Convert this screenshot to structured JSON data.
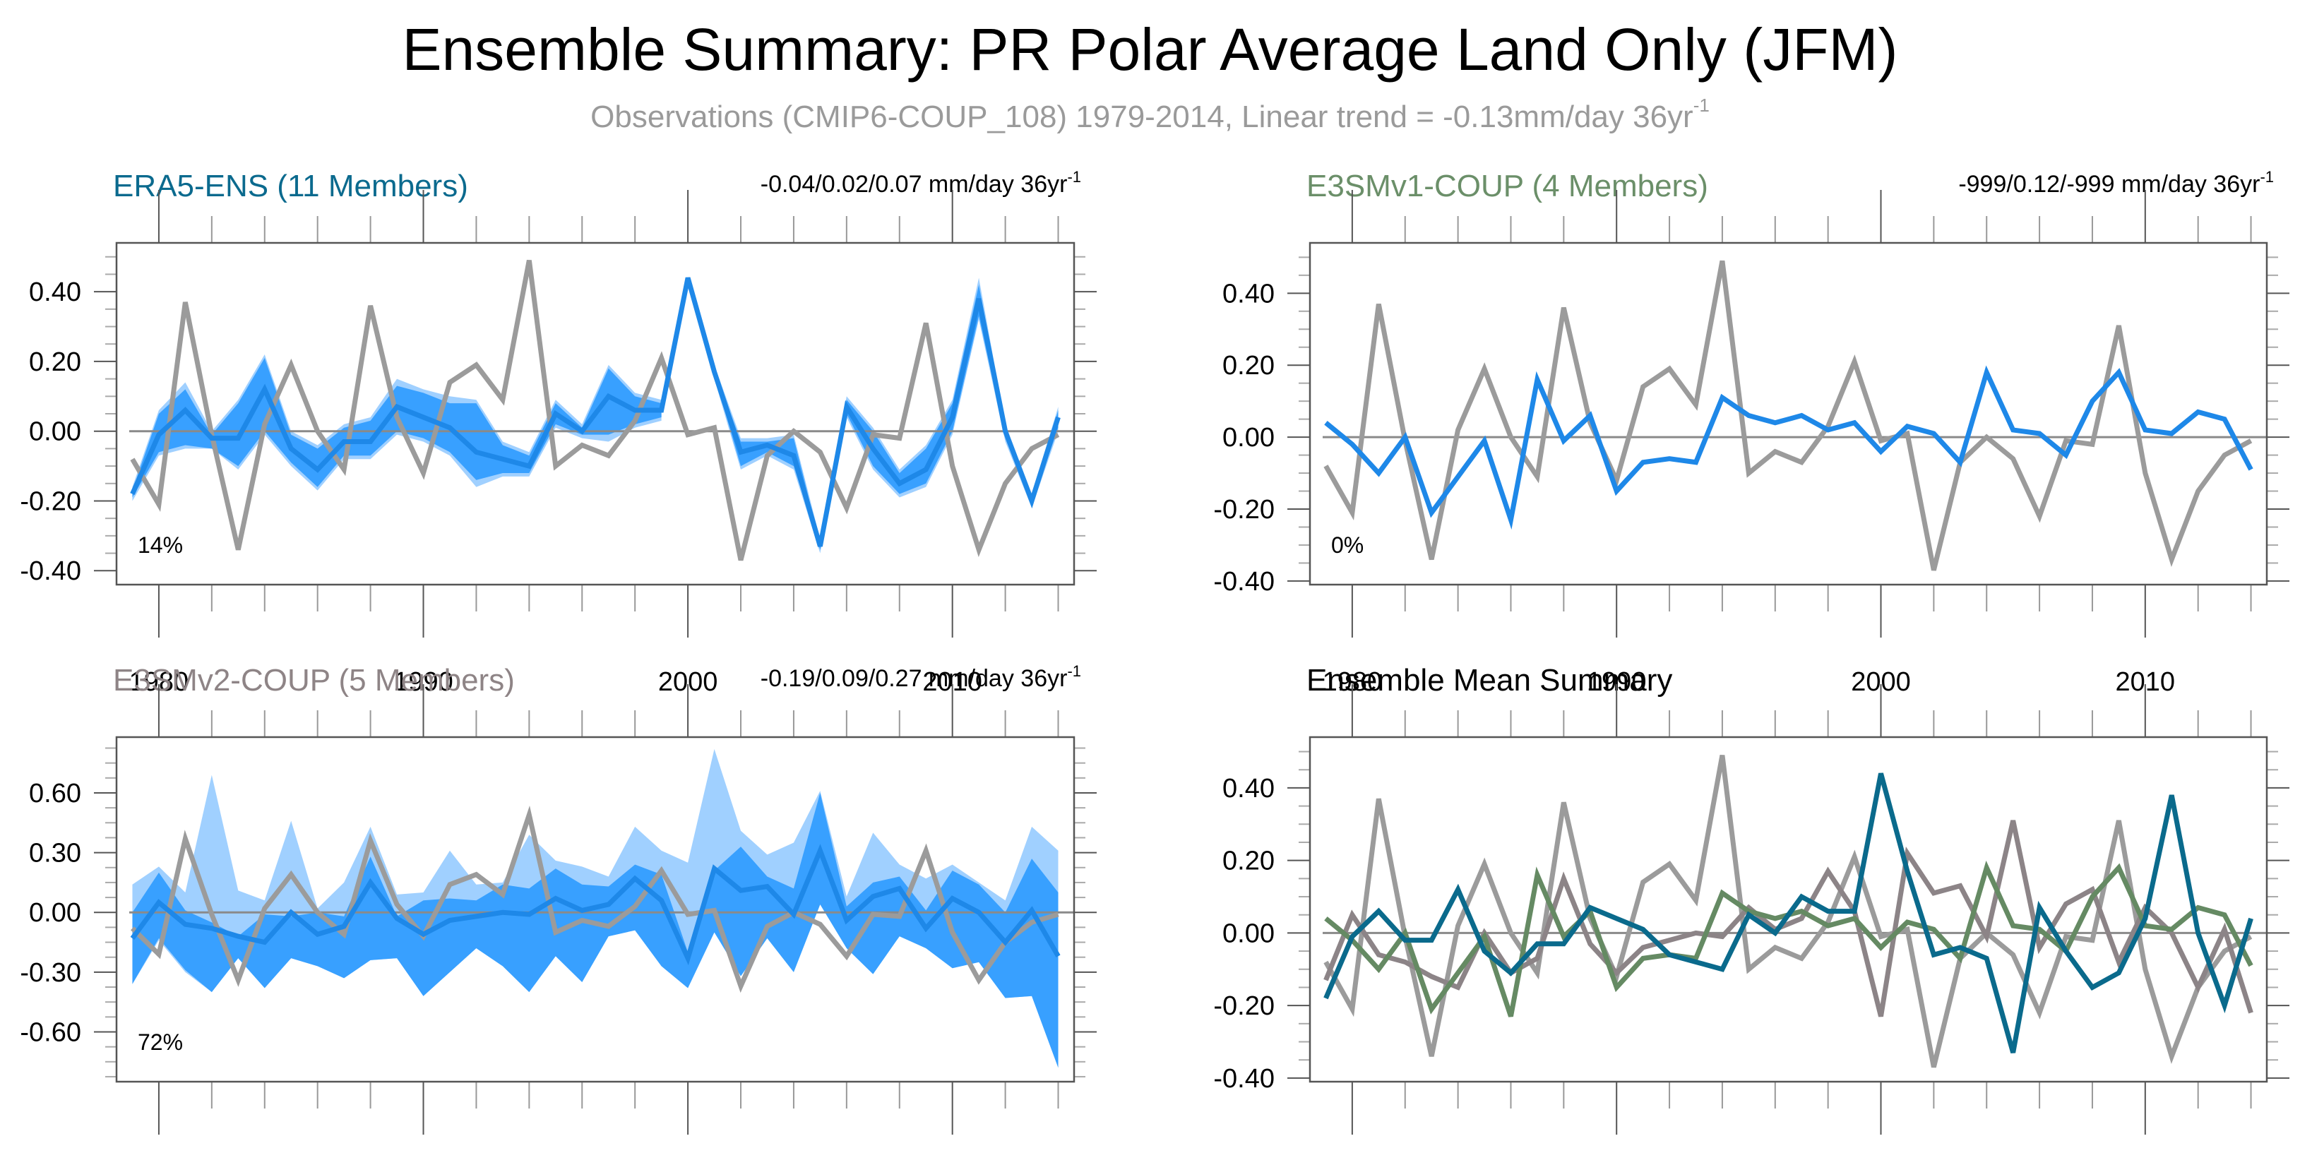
{
  "title": "Ensemble Summary: PR Polar Average Land Only (JFM)",
  "subtitle": {
    "text": "Observations (CMIP6-COUP_108) 1979-2014, Linear trend = -0.13mm/day 36yr",
    "superscript": "-1"
  },
  "colors": {
    "observations": "#9b9b9b",
    "ensemble_mean_line": "#1e88e8",
    "band_inner": "#38a0ff",
    "band_outer": "#a0d0ff",
    "era5_title": "#0b6a8e",
    "e3smv1_title": "#6b8f69",
    "e3smv2_title": "#8e8486",
    "era5_summary": "#0a6a8c",
    "e3smv1_summary": "#658a63",
    "e3smv2_summary": "#8c8487",
    "zero_line": "#8a8a8a"
  },
  "chart_data": [
    {
      "id": "era5",
      "type": "line",
      "title": "ERA5-ENS (11 Members)",
      "trend_text": "-0.04/0.02/0.07 mm/day 36yr",
      "trend_sup": "-1",
      "percent_label": "14%",
      "xlabel": "",
      "ylabel": "",
      "x": [
        1979,
        1980,
        1981,
        1982,
        1983,
        1984,
        1985,
        1986,
        1987,
        1988,
        1989,
        1990,
        1991,
        1992,
        1993,
        1994,
        1995,
        1996,
        1997,
        1998,
        1999,
        2000,
        2001,
        2002,
        2003,
        2004,
        2005,
        2006,
        2007,
        2008,
        2009,
        2010,
        2011,
        2012,
        2013,
        2014
      ],
      "xlim": [
        1978.4,
        2014.6
      ],
      "ylim": [
        -0.44,
        0.54
      ],
      "yticks": [
        -0.4,
        -0.2,
        0.0,
        0.2,
        0.4
      ],
      "ytick_labels": [
        "-0.40",
        "-0.20",
        "0.00",
        "0.20",
        "0.40"
      ],
      "xticks": [
        1980,
        1990,
        2000,
        2010
      ],
      "xtick_labels": [
        "1980",
        "1990",
        "2000",
        "2010"
      ],
      "show_xtick_labels": true,
      "observations": [
        -0.08,
        -0.21,
        0.37,
        -0.01,
        -0.34,
        0.02,
        0.19,
        0.0,
        -0.11,
        0.36,
        0.04,
        -0.12,
        0.14,
        0.19,
        0.09,
        0.49,
        -0.1,
        -0.04,
        -0.07,
        0.03,
        0.21,
        -0.01,
        0.01,
        -0.37,
        -0.07,
        0.0,
        -0.06,
        -0.22,
        -0.01,
        -0.02,
        0.31,
        -0.1,
        -0.34,
        -0.15,
        -0.05,
        -0.01
      ],
      "mean": [
        -0.18,
        -0.01,
        0.06,
        -0.02,
        -0.02,
        0.12,
        -0.05,
        -0.11,
        -0.03,
        -0.03,
        0.07,
        0.04,
        0.01,
        -0.06,
        -0.08,
        -0.1,
        0.05,
        0.0,
        0.1,
        0.06,
        0.06,
        0.44,
        0.17,
        -0.06,
        -0.04,
        -0.07,
        -0.33,
        0.07,
        -0.05,
        -0.15,
        -0.11,
        0.04,
        0.38,
        0.0,
        -0.2,
        0.04
      ],
      "band_inner_low": [
        -0.19,
        -0.06,
        -0.04,
        -0.05,
        -0.1,
        0.0,
        -0.09,
        -0.16,
        -0.07,
        -0.07,
        0.0,
        -0.02,
        -0.06,
        -0.14,
        -0.12,
        -0.12,
        0.02,
        -0.01,
        -0.01,
        0.02,
        0.04,
        0.43,
        0.16,
        -0.1,
        -0.06,
        -0.1,
        -0.34,
        0.05,
        -0.1,
        -0.18,
        -0.15,
        0.0,
        0.33,
        -0.02,
        -0.21,
        0.01
      ],
      "band_inner_high": [
        -0.17,
        0.05,
        0.12,
        -0.01,
        0.08,
        0.21,
        -0.01,
        -0.05,
        0.01,
        0.03,
        0.13,
        0.11,
        0.08,
        0.08,
        -0.04,
        -0.07,
        0.08,
        0.01,
        0.18,
        0.1,
        0.08,
        0.45,
        0.18,
        -0.03,
        -0.03,
        -0.02,
        -0.32,
        0.09,
        0.0,
        -0.12,
        -0.05,
        0.08,
        0.42,
        0.01,
        -0.19,
        0.06
      ],
      "band_outer_low": [
        -0.2,
        -0.07,
        -0.05,
        -0.05,
        -0.11,
        -0.01,
        -0.1,
        -0.17,
        -0.08,
        -0.08,
        -0.01,
        -0.03,
        -0.07,
        -0.16,
        -0.13,
        -0.13,
        0.01,
        -0.02,
        -0.03,
        0.01,
        0.03,
        0.43,
        0.15,
        -0.11,
        -0.07,
        -0.11,
        -0.35,
        0.04,
        -0.11,
        -0.19,
        -0.16,
        -0.01,
        0.32,
        -0.03,
        -0.22,
        0.0
      ],
      "band_outer_high": [
        -0.16,
        0.06,
        0.14,
        0.0,
        0.09,
        0.22,
        0.0,
        -0.04,
        0.02,
        0.04,
        0.15,
        0.12,
        0.1,
        0.09,
        -0.03,
        -0.06,
        0.09,
        0.02,
        0.19,
        0.11,
        0.09,
        0.45,
        0.19,
        -0.02,
        -0.02,
        -0.01,
        -0.31,
        0.1,
        0.01,
        -0.11,
        -0.04,
        0.09,
        0.44,
        0.02,
        -0.18,
        0.07
      ],
      "band_break_after": 1999,
      "band_resume_at": 2001
    },
    {
      "id": "e3smv1",
      "type": "line",
      "title": "E3SMv1-COUP (4 Members)",
      "trend_text": "-999/0.12/-999 mm/day 36yr",
      "trend_sup": "-1",
      "percent_label": "0%",
      "xlabel": "",
      "ylabel": "",
      "x": [
        1979,
        1980,
        1981,
        1982,
        1983,
        1984,
        1985,
        1986,
        1987,
        1988,
        1989,
        1990,
        1991,
        1992,
        1993,
        1994,
        1995,
        1996,
        1997,
        1998,
        1999,
        2000,
        2001,
        2002,
        2003,
        2004,
        2005,
        2006,
        2007,
        2008,
        2009,
        2010,
        2011,
        2012,
        2013,
        2014
      ],
      "xlim": [
        1978.4,
        2014.6
      ],
      "ylim": [
        -0.41,
        0.54
      ],
      "yticks": [
        -0.4,
        -0.2,
        0.0,
        0.2,
        0.4
      ],
      "ytick_labels": [
        "-0.40",
        "-0.20",
        "0.00",
        "0.20",
        "0.40"
      ],
      "xticks": [
        1980,
        1990,
        2000,
        2010
      ],
      "xtick_labels": [
        "1980",
        "1990",
        "2000",
        "2010"
      ],
      "show_xtick_labels": true,
      "observations": [
        -0.08,
        -0.21,
        0.37,
        -0.01,
        -0.34,
        0.02,
        0.19,
        0.0,
        -0.11,
        0.36,
        0.04,
        -0.12,
        0.14,
        0.19,
        0.09,
        0.49,
        -0.1,
        -0.04,
        -0.07,
        0.03,
        0.21,
        -0.01,
        0.01,
        -0.37,
        -0.07,
        0.0,
        -0.06,
        -0.22,
        -0.01,
        -0.02,
        0.31,
        -0.1,
        -0.34,
        -0.15,
        -0.05,
        -0.01
      ],
      "mean": [
        0.04,
        -0.02,
        -0.1,
        0.0,
        -0.21,
        -0.11,
        -0.01,
        -0.23,
        0.16,
        -0.01,
        0.06,
        -0.15,
        -0.07,
        -0.06,
        -0.07,
        0.11,
        0.06,
        0.04,
        0.06,
        0.02,
        0.04,
        -0.04,
        0.03,
        0.01,
        -0.07,
        0.18,
        0.02,
        0.01,
        -0.05,
        0.1,
        0.18,
        0.02,
        0.01,
        0.07,
        0.05,
        -0.09
      ]
    },
    {
      "id": "e3smv2",
      "type": "line",
      "title": "E3SMv2-COUP (5 Members)",
      "trend_text": "-0.19/0.09/0.27 mm/day 36yr",
      "trend_sup": "-1",
      "percent_label": "72%",
      "xlabel": "",
      "ylabel": "",
      "x": [
        1979,
        1980,
        1981,
        1982,
        1983,
        1984,
        1985,
        1986,
        1987,
        1988,
        1989,
        1990,
        1991,
        1992,
        1993,
        1994,
        1995,
        1996,
        1997,
        1998,
        1999,
        2000,
        2001,
        2002,
        2003,
        2004,
        2005,
        2006,
        2007,
        2008,
        2009,
        2010,
        2011,
        2012,
        2013,
        2014
      ],
      "xlim": [
        1978.4,
        2014.6
      ],
      "ylim": [
        -0.85,
        0.88
      ],
      "yticks": [
        -0.6,
        -0.3,
        0.0,
        0.3,
        0.6
      ],
      "ytick_labels": [
        "-0.60",
        "-0.30",
        "0.00",
        "0.30",
        "0.60"
      ],
      "xticks": [
        1980,
        1990,
        2000,
        2010
      ],
      "xtick_labels": [
        "1980",
        "1990",
        "2000",
        "2010"
      ],
      "show_xtick_labels": true,
      "observations": [
        -0.08,
        -0.21,
        0.37,
        -0.01,
        -0.34,
        0.02,
        0.19,
        0.0,
        -0.11,
        0.36,
        0.04,
        -0.12,
        0.14,
        0.19,
        0.09,
        0.49,
        -0.1,
        -0.04,
        -0.07,
        0.03,
        0.21,
        -0.01,
        0.01,
        -0.37,
        -0.07,
        0.0,
        -0.06,
        -0.22,
        -0.01,
        -0.02,
        0.31,
        -0.1,
        -0.34,
        -0.15,
        -0.05,
        -0.01
      ],
      "mean": [
        -0.13,
        0.05,
        -0.06,
        -0.08,
        -0.12,
        -0.15,
        0.0,
        -0.11,
        -0.07,
        0.15,
        -0.03,
        -0.11,
        -0.04,
        -0.02,
        0.0,
        -0.01,
        0.07,
        0.01,
        0.04,
        0.17,
        0.06,
        -0.23,
        0.22,
        0.11,
        0.13,
        -0.01,
        0.31,
        -0.04,
        0.08,
        0.12,
        -0.08,
        0.07,
        0.0,
        -0.15,
        0.01,
        -0.22
      ],
      "band_inner_low": [
        -0.36,
        -0.13,
        -0.29,
        -0.4,
        -0.23,
        -0.38,
        -0.23,
        -0.27,
        -0.33,
        -0.24,
        -0.23,
        -0.42,
        -0.3,
        -0.18,
        -0.27,
        -0.4,
        -0.22,
        -0.35,
        -0.12,
        -0.09,
        -0.27,
        -0.38,
        -0.1,
        -0.32,
        -0.13,
        -0.3,
        0.04,
        -0.18,
        -0.31,
        -0.12,
        -0.18,
        -0.28,
        -0.25,
        -0.43,
        -0.42,
        -0.78
      ],
      "band_inner_high": [
        0.0,
        0.2,
        0.01,
        -0.05,
        -0.12,
        -0.01,
        -0.02,
        0.0,
        -0.02,
        0.28,
        -0.02,
        0.06,
        0.07,
        0.06,
        0.14,
        0.12,
        0.22,
        0.14,
        0.13,
        0.24,
        0.19,
        -0.2,
        0.21,
        0.33,
        0.18,
        0.12,
        0.6,
        0.03,
        0.15,
        0.18,
        0.01,
        0.21,
        0.14,
        0.0,
        0.27,
        0.1
      ],
      "band_outer_low": [
        -0.36,
        -0.14,
        -0.3,
        -0.4,
        -0.23,
        -0.38,
        -0.23,
        -0.27,
        -0.33,
        -0.24,
        -0.23,
        -0.42,
        -0.3,
        -0.18,
        -0.27,
        -0.4,
        -0.22,
        -0.35,
        -0.12,
        -0.09,
        -0.27,
        -0.38,
        -0.1,
        -0.32,
        -0.13,
        -0.3,
        0.04,
        -0.18,
        -0.31,
        -0.12,
        -0.18,
        -0.28,
        -0.25,
        -0.43,
        -0.42,
        -0.78
      ],
      "band_outer_high": [
        0.14,
        0.23,
        0.1,
        0.69,
        0.11,
        0.06,
        0.46,
        0.02,
        0.15,
        0.43,
        0.09,
        0.1,
        0.31,
        0.14,
        0.15,
        0.39,
        0.26,
        0.23,
        0.18,
        0.43,
        0.31,
        0.25,
        0.82,
        0.41,
        0.29,
        0.35,
        0.61,
        0.08,
        0.4,
        0.24,
        0.17,
        0.24,
        0.15,
        0.06,
        0.43,
        0.31
      ]
    },
    {
      "id": "summary",
      "type": "line",
      "title": "Ensemble Mean Summary",
      "xlabel": "",
      "ylabel": "",
      "x": [
        1979,
        1980,
        1981,
        1982,
        1983,
        1984,
        1985,
        1986,
        1987,
        1988,
        1989,
        1990,
        1991,
        1992,
        1993,
        1994,
        1995,
        1996,
        1997,
        1998,
        1999,
        2000,
        2001,
        2002,
        2003,
        2004,
        2005,
        2006,
        2007,
        2008,
        2009,
        2010,
        2011,
        2012,
        2013,
        2014
      ],
      "xlim": [
        1978.4,
        2014.6
      ],
      "ylim": [
        -0.41,
        0.54
      ],
      "yticks": [
        -0.4,
        -0.2,
        0.0,
        0.2,
        0.4
      ],
      "ytick_labels": [
        "-0.40",
        "-0.20",
        "0.00",
        "0.20",
        "0.40"
      ],
      "xticks": [
        1980,
        1990,
        2000,
        2010
      ],
      "xtick_labels": [
        "1980",
        "1990",
        "2000",
        "2010"
      ],
      "show_xtick_labels": true,
      "series": [
        {
          "name": "Observations",
          "color_key": "observations",
          "values": [
            -0.08,
            -0.21,
            0.37,
            -0.01,
            -0.34,
            0.02,
            0.19,
            0.0,
            -0.11,
            0.36,
            0.04,
            -0.12,
            0.14,
            0.19,
            0.09,
            0.49,
            -0.1,
            -0.04,
            -0.07,
            0.03,
            0.21,
            -0.01,
            0.01,
            -0.37,
            -0.07,
            0.0,
            -0.06,
            -0.22,
            -0.01,
            -0.02,
            0.31,
            -0.1,
            -0.34,
            -0.15,
            -0.05,
            -0.01
          ]
        },
        {
          "name": "E3SMv2-COUP",
          "color_key": "e3smv2_summary",
          "values": [
            -0.13,
            0.05,
            -0.06,
            -0.08,
            -0.12,
            -0.15,
            0.0,
            -0.11,
            -0.07,
            0.15,
            -0.03,
            -0.11,
            -0.04,
            -0.02,
            0.0,
            -0.01,
            0.07,
            0.01,
            0.04,
            0.17,
            0.06,
            -0.23,
            0.22,
            0.11,
            0.13,
            -0.01,
            0.31,
            -0.04,
            0.08,
            0.12,
            -0.08,
            0.07,
            0.0,
            -0.15,
            0.01,
            -0.22
          ]
        },
        {
          "name": "E3SMv1-COUP",
          "color_key": "e3smv1_summary",
          "values": [
            0.04,
            -0.02,
            -0.1,
            0.0,
            -0.21,
            -0.11,
            -0.01,
            -0.23,
            0.16,
            -0.01,
            0.06,
            -0.15,
            -0.07,
            -0.06,
            -0.07,
            0.11,
            0.06,
            0.04,
            0.06,
            0.02,
            0.04,
            -0.04,
            0.03,
            0.01,
            -0.07,
            0.18,
            0.02,
            0.01,
            -0.05,
            0.1,
            0.18,
            0.02,
            0.01,
            0.07,
            0.05,
            -0.09
          ]
        },
        {
          "name": "ERA5-ENS",
          "color_key": "era5_summary",
          "values": [
            -0.18,
            -0.01,
            0.06,
            -0.02,
            -0.02,
            0.12,
            -0.05,
            -0.11,
            -0.03,
            -0.03,
            0.07,
            0.04,
            0.01,
            -0.06,
            -0.08,
            -0.1,
            0.05,
            0.0,
            0.1,
            0.06,
            0.06,
            0.44,
            0.17,
            -0.06,
            -0.04,
            -0.07,
            -0.33,
            0.07,
            -0.05,
            -0.15,
            -0.11,
            0.04,
            0.38,
            0.0,
            -0.2,
            0.04
          ]
        }
      ]
    }
  ]
}
